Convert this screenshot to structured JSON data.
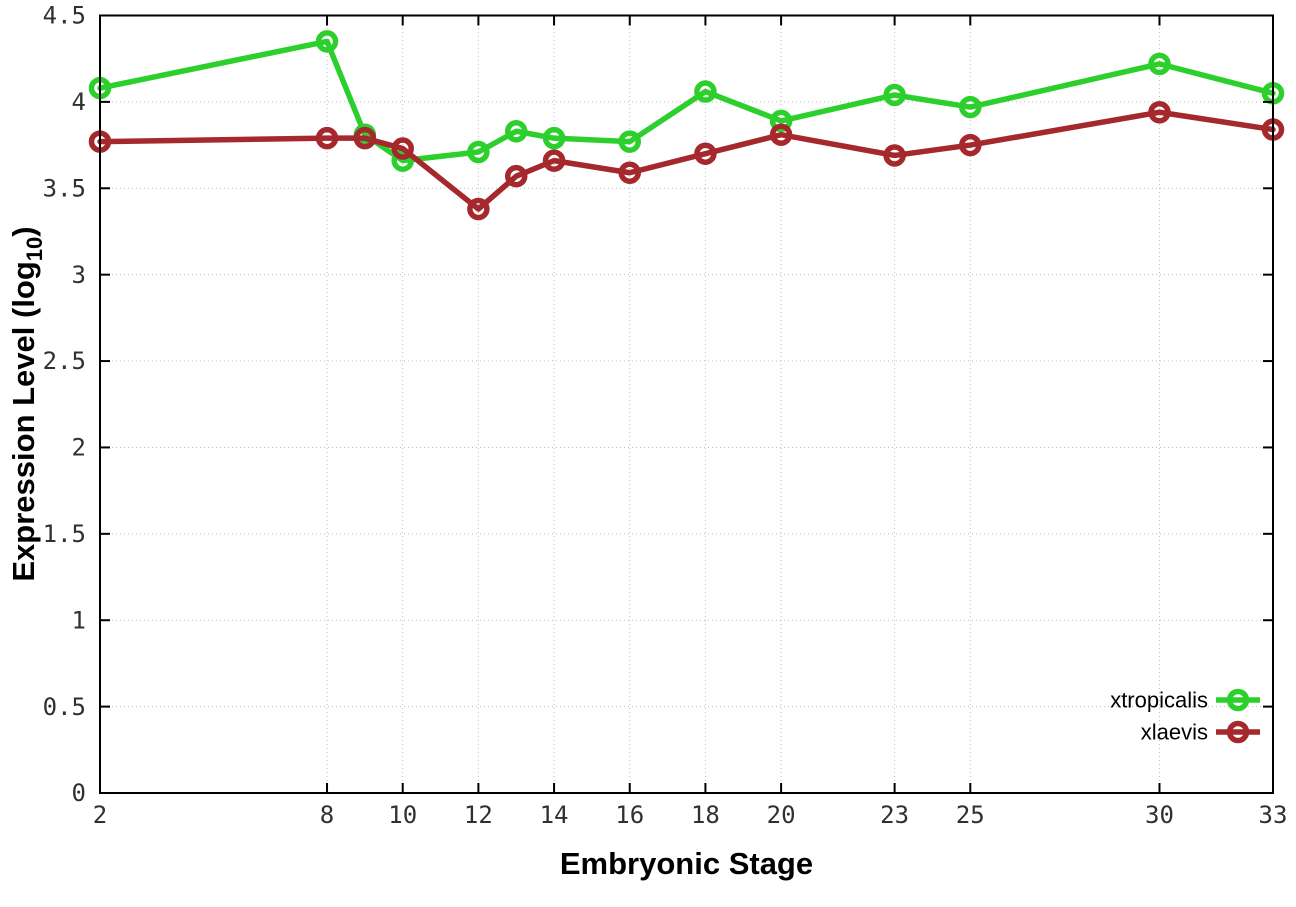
{
  "chart_data": {
    "type": "line",
    "title": "",
    "xlabel": "Embryonic Stage",
    "ylabel": "Expression Level (log10)",
    "ylabel_parts": {
      "main": "Expression Level (log",
      "sub": "10",
      "end": ")"
    },
    "xlim": [
      2,
      33
    ],
    "ylim": [
      0,
      4.5
    ],
    "xticks": [
      2,
      8,
      10,
      12,
      14,
      16,
      18,
      20,
      23,
      25,
      30,
      33
    ],
    "xtick_labels": [
      "2",
      "8",
      "10",
      "12",
      "14",
      "16",
      "18",
      "20",
      "23",
      "25",
      "30",
      "33"
    ],
    "yticks": [
      0,
      0.5,
      1,
      1.5,
      2,
      2.5,
      3,
      3.5,
      4,
      4.5
    ],
    "ytick_labels": [
      "0",
      "0.5",
      "1",
      "1.5",
      "2",
      "2.5",
      "3",
      "3.5",
      "4",
      "4.5"
    ],
    "grid": true,
    "legend_position": "bottom-right",
    "marker": "open-circle",
    "x": [
      2,
      8,
      9,
      10,
      12,
      13,
      14,
      16,
      18,
      20,
      23,
      25,
      30,
      33
    ],
    "series": [
      {
        "name": "xtropicalis",
        "color": "#2dcf2d",
        "values": [
          4.08,
          4.35,
          3.81,
          3.66,
          3.71,
          3.83,
          3.79,
          3.77,
          4.06,
          3.89,
          4.04,
          3.97,
          4.22,
          4.05
        ]
      },
      {
        "name": "xlaevis",
        "color": "#a5282d",
        "values": [
          3.77,
          3.79,
          3.79,
          3.73,
          3.38,
          3.57,
          3.66,
          3.59,
          3.7,
          3.81,
          3.69,
          3.75,
          3.94,
          3.84
        ]
      }
    ],
    "style": {
      "grid_color": "#bdbdbd",
      "border_color": "#000000",
      "tick_label_color": "#303030",
      "axis_label_color": "#000000",
      "legend_text_color": "#000000"
    }
  }
}
